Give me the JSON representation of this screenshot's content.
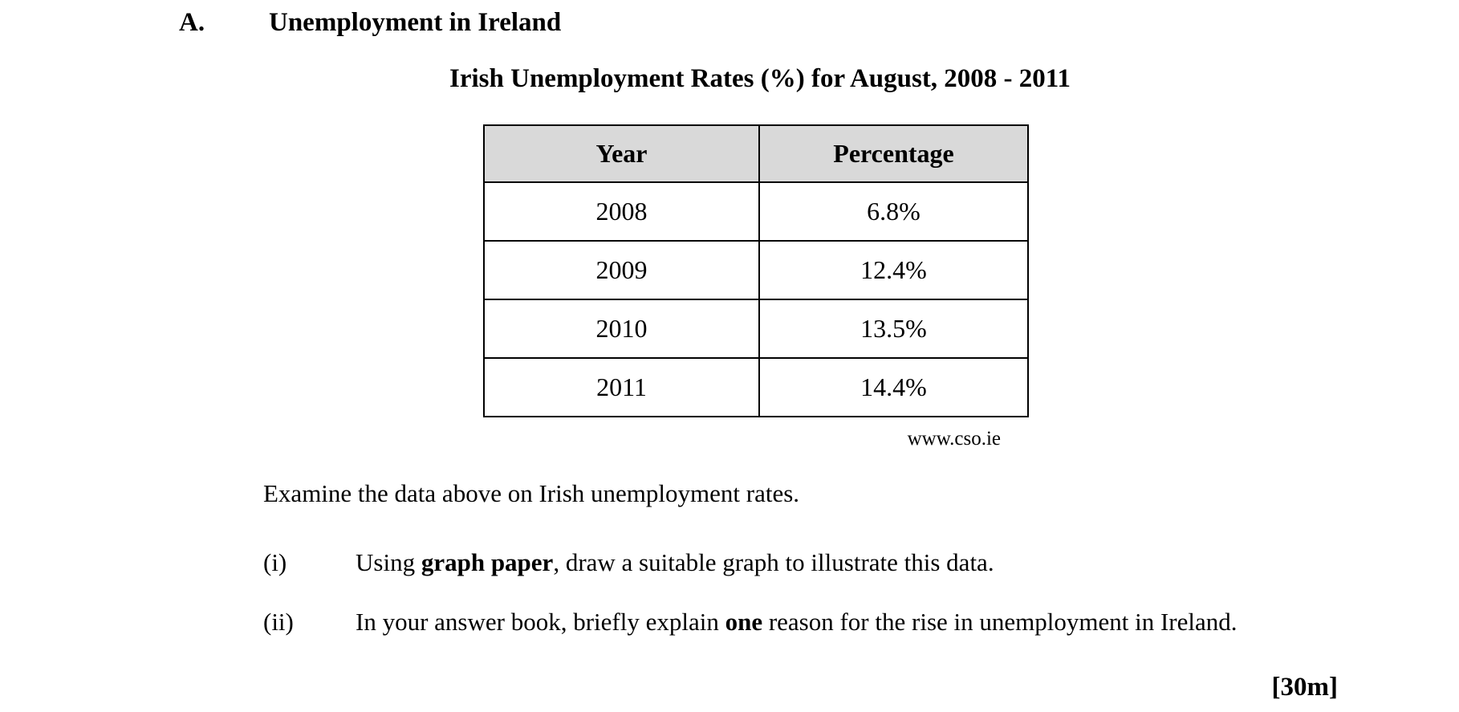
{
  "document": {
    "section_label": "A.",
    "section_title": "Unemployment in Ireland",
    "table_title": "Irish Unemployment Rates (%) for August, 2008 - 2011",
    "source": "www.cso.ie",
    "examine_text": "Examine the data above on Irish unemployment rates.",
    "marks": "[30m]"
  },
  "table": {
    "headers": {
      "year": "Year",
      "percentage": "Percentage"
    },
    "rows": [
      {
        "year": "2008",
        "percentage": "6.8%"
      },
      {
        "year": "2009",
        "percentage": "12.4%"
      },
      {
        "year": "2010",
        "percentage": "13.5%"
      },
      {
        "year": "2011",
        "percentage": "14.4%"
      }
    ]
  },
  "questions": [
    {
      "label": "(i)",
      "pre": "Using ",
      "bold": "graph paper",
      "post": ", draw a suitable graph to illustrate this data."
    },
    {
      "label": "(ii)",
      "pre": "In your answer book, briefly explain ",
      "bold": "one",
      "post": " reason for the rise in unemployment in Ireland."
    }
  ],
  "colors": {
    "header_bg": "#d9d9d9",
    "text": "#000000",
    "border": "#000000",
    "page_bg": "#ffffff"
  }
}
